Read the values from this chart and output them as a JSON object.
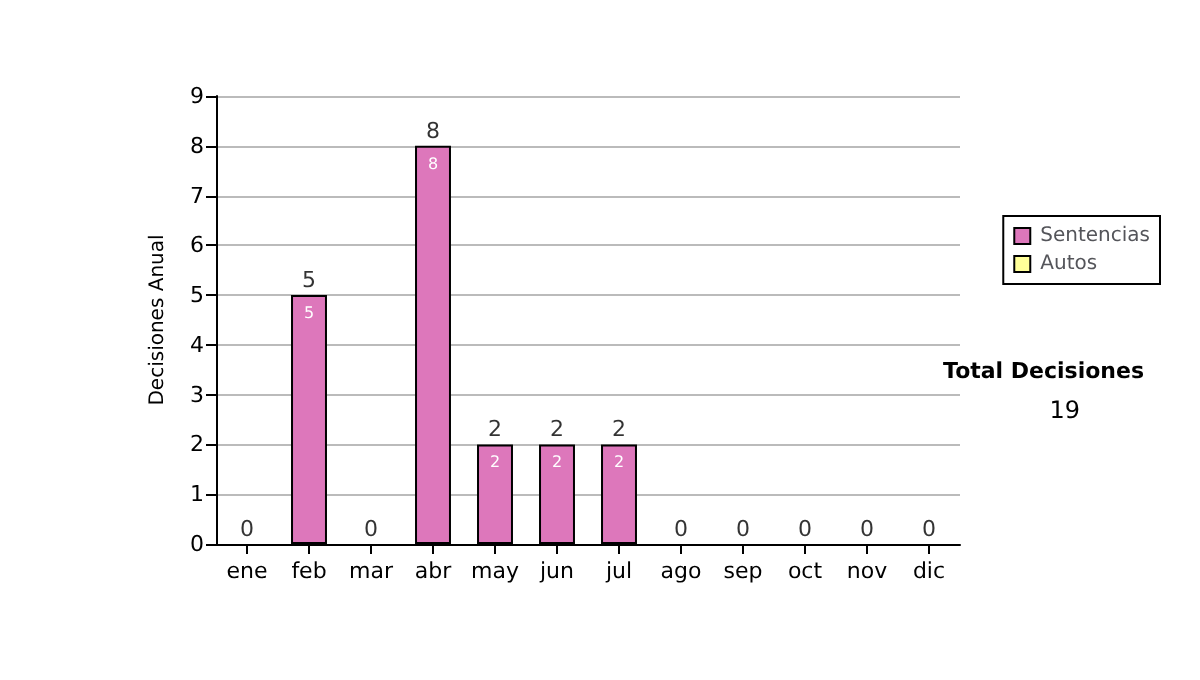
{
  "chart_data": {
    "type": "bar",
    "stacked": true,
    "ylabel": "Decisiones Anual",
    "categories": [
      "ene",
      "feb",
      "mar",
      "abr",
      "may",
      "jun",
      "jul",
      "ago",
      "sep",
      "oct",
      "nov",
      "dic"
    ],
    "series": [
      {
        "name": "Sentencias",
        "color": "#dd77bb",
        "values": [
          0,
          5,
          0,
          8,
          2,
          2,
          2,
          0,
          0,
          0,
          0,
          0
        ],
        "value_labels": [
          null,
          "5",
          null,
          "8",
          "2",
          "2",
          "2",
          null,
          null,
          null,
          null,
          null
        ]
      },
      {
        "name": "Autos",
        "color": "#ffff99",
        "values": [
          0,
          0,
          0,
          0,
          0,
          0,
          0,
          0,
          0,
          0,
          0,
          0
        ]
      }
    ],
    "totals": [
      "0",
      "5",
      "0",
      "8",
      "2",
      "2",
      "2",
      "0",
      "0",
      "0",
      "0",
      "0"
    ],
    "ylim": [
      0,
      9
    ],
    "yticks": [
      0,
      1,
      2,
      3,
      4,
      5,
      6,
      7,
      8,
      9
    ],
    "grid": "y",
    "legend": "right",
    "annotations": [
      "Total Decisiones",
      "19"
    ]
  }
}
